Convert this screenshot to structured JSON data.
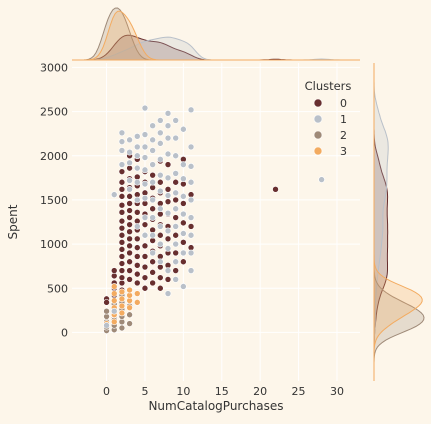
{
  "chart_data": {
    "type": "scatter",
    "title": "",
    "xlabel": "NumCatalogPurchases",
    "ylabel": "Spent",
    "xlim": [
      -4.5,
      33
    ],
    "ylim": [
      -550,
      3050
    ],
    "xticks": [
      0,
      5,
      10,
      15,
      20,
      25,
      30
    ],
    "yticks": [
      0,
      500,
      1000,
      1500,
      2000,
      2500,
      3000
    ],
    "grid": true,
    "legend": {
      "title": "Clusters",
      "placement": "top-right"
    },
    "marginals": {
      "top": "kde",
      "right": "kde"
    },
    "series": [
      {
        "name": "0",
        "color": "#682f2f",
        "points": [
          [
            0,
            380
          ],
          [
            0,
            340
          ],
          [
            1,
            100
          ],
          [
            1,
            180
          ],
          [
            1,
            260
          ],
          [
            1,
            350
          ],
          [
            1,
            420
          ],
          [
            1,
            500
          ],
          [
            1,
            560
          ],
          [
            1,
            640
          ],
          [
            1,
            700
          ],
          [
            2,
            480
          ],
          [
            2,
            560
          ],
          [
            2,
            620
          ],
          [
            2,
            700
          ],
          [
            2,
            780
          ],
          [
            2,
            860
          ],
          [
            2,
            940
          ],
          [
            2,
            1020
          ],
          [
            2,
            1100
          ],
          [
            2,
            1180
          ],
          [
            2,
            1260
          ],
          [
            2,
            1360
          ],
          [
            2,
            1440
          ],
          [
            2,
            1540
          ],
          [
            2,
            1620
          ],
          [
            2,
            1700
          ],
          [
            2,
            1820
          ],
          [
            3,
            600
          ],
          [
            3,
            700
          ],
          [
            3,
            800
          ],
          [
            3,
            900
          ],
          [
            3,
            980
          ],
          [
            3,
            1060
          ],
          [
            3,
            1140
          ],
          [
            3,
            1220
          ],
          [
            3,
            1300
          ],
          [
            3,
            1380
          ],
          [
            3,
            1460
          ],
          [
            3,
            1540
          ],
          [
            3,
            1640
          ],
          [
            3,
            1740
          ],
          [
            3,
            1860
          ],
          [
            3,
            2000
          ],
          [
            4,
            560
          ],
          [
            4,
            660
          ],
          [
            4,
            760
          ],
          [
            4,
            860
          ],
          [
            4,
            960
          ],
          [
            4,
            1060
          ],
          [
            4,
            1160
          ],
          [
            4,
            1260
          ],
          [
            4,
            1360
          ],
          [
            4,
            1460
          ],
          [
            4,
            1560
          ],
          [
            4,
            1660
          ],
          [
            4,
            1760
          ],
          [
            4,
            1960
          ],
          [
            5,
            500
          ],
          [
            5,
            620
          ],
          [
            5,
            740
          ],
          [
            5,
            860
          ],
          [
            5,
            980
          ],
          [
            5,
            1100
          ],
          [
            5,
            1220
          ],
          [
            5,
            1340
          ],
          [
            5,
            1460
          ],
          [
            5,
            1580
          ],
          [
            5,
            1700
          ],
          [
            5,
            1820
          ],
          [
            6,
            560
          ],
          [
            6,
            680
          ],
          [
            6,
            800
          ],
          [
            6,
            920
          ],
          [
            6,
            1040
          ],
          [
            6,
            1160
          ],
          [
            6,
            1280
          ],
          [
            6,
            1400
          ],
          [
            6,
            1520
          ],
          [
            6,
            1640
          ],
          [
            6,
            1780
          ],
          [
            7,
            500
          ],
          [
            7,
            620
          ],
          [
            7,
            740
          ],
          [
            7,
            860
          ],
          [
            7,
            980
          ],
          [
            7,
            1100
          ],
          [
            7,
            1220
          ],
          [
            7,
            1340
          ],
          [
            7,
            1460
          ],
          [
            7,
            1580
          ],
          [
            7,
            1700
          ],
          [
            7,
            1940
          ],
          [
            8,
            600
          ],
          [
            8,
            760
          ],
          [
            8,
            900
          ],
          [
            8,
            1060
          ],
          [
            8,
            1200
          ],
          [
            8,
            1340
          ],
          [
            8,
            1480
          ],
          [
            8,
            1620
          ],
          [
            8,
            1900
          ],
          [
            9,
            700
          ],
          [
            9,
            900
          ],
          [
            9,
            1100
          ],
          [
            9,
            1300
          ],
          [
            9,
            1500
          ],
          [
            9,
            1700
          ],
          [
            10,
            800
          ],
          [
            10,
            1020
          ],
          [
            10,
            1240
          ],
          [
            10,
            1460
          ],
          [
            10,
            1680
          ],
          [
            10,
            1960
          ],
          [
            11,
            960
          ],
          [
            11,
            1200
          ],
          [
            11,
            1560
          ],
          [
            22,
            1620
          ]
        ]
      },
      {
        "name": "1",
        "color": "#b9c0c9",
        "points": [
          [
            0,
            80
          ],
          [
            1,
            240
          ],
          [
            1,
            1560
          ],
          [
            2,
            1900
          ],
          [
            2,
            2060
          ],
          [
            2,
            2160
          ],
          [
            2,
            2260
          ],
          [
            3,
            1620
          ],
          [
            3,
            1720
          ],
          [
            3,
            1920
          ],
          [
            3,
            2040
          ],
          [
            3,
            2180
          ],
          [
            4,
            1200
          ],
          [
            4,
            1500
          ],
          [
            4,
            1700
          ],
          [
            4,
            1860
          ],
          [
            4,
            2000
          ],
          [
            4,
            2100
          ],
          [
            4,
            2220
          ],
          [
            5,
            1100
          ],
          [
            5,
            1300
          ],
          [
            5,
            1520
          ],
          [
            5,
            1680
          ],
          [
            5,
            1840
          ],
          [
            5,
            1980
          ],
          [
            5,
            2100
          ],
          [
            5,
            2240
          ],
          [
            5,
            2540
          ],
          [
            6,
            900
          ],
          [
            6,
            1100
          ],
          [
            6,
            1300
          ],
          [
            6,
            1500
          ],
          [
            6,
            1700
          ],
          [
            6,
            1900
          ],
          [
            6,
            2060
          ],
          [
            6,
            2180
          ],
          [
            6,
            2340
          ],
          [
            7,
            800
          ],
          [
            7,
            1000
          ],
          [
            7,
            1200
          ],
          [
            7,
            1400
          ],
          [
            7,
            1600
          ],
          [
            7,
            1780
          ],
          [
            7,
            1960
          ],
          [
            7,
            2140
          ],
          [
            7,
            2260
          ],
          [
            7,
            2400
          ],
          [
            8,
            440
          ],
          [
            8,
            700
          ],
          [
            8,
            950
          ],
          [
            8,
            1150
          ],
          [
            8,
            1350
          ],
          [
            8,
            1550
          ],
          [
            8,
            1750
          ],
          [
            8,
            2020
          ],
          [
            8,
            2200
          ],
          [
            8,
            2340
          ],
          [
            8,
            2480
          ],
          [
            9,
            600
          ],
          [
            9,
            800
          ],
          [
            9,
            1000
          ],
          [
            9,
            1200
          ],
          [
            9,
            1400
          ],
          [
            9,
            1580
          ],
          [
            9,
            1800
          ],
          [
            9,
            2000
          ],
          [
            9,
            2200
          ],
          [
            9,
            2400
          ],
          [
            10,
            520
          ],
          [
            10,
            900
          ],
          [
            10,
            1120
          ],
          [
            10,
            1340
          ],
          [
            10,
            1540
          ],
          [
            10,
            1740
          ],
          [
            10,
            1900
          ],
          [
            10,
            2300
          ],
          [
            11,
            700
          ],
          [
            11,
            900
          ],
          [
            11,
            1100
          ],
          [
            11,
            1300
          ],
          [
            11,
            1500
          ],
          [
            11,
            1700
          ],
          [
            11,
            1880
          ],
          [
            11,
            2100
          ],
          [
            11,
            2520
          ],
          [
            28,
            1730
          ]
        ]
      },
      {
        "name": "2",
        "color": "#9f8a78",
        "points": [
          [
            0,
            20
          ],
          [
            0,
            60
          ],
          [
            0,
            120
          ],
          [
            0,
            180
          ],
          [
            0,
            240
          ],
          [
            1,
            30
          ],
          [
            1,
            80
          ],
          [
            1,
            140
          ],
          [
            1,
            200
          ],
          [
            1,
            260
          ],
          [
            1,
            320
          ],
          [
            2,
            50
          ],
          [
            2,
            120
          ],
          [
            2,
            180
          ],
          [
            2,
            260
          ],
          [
            2,
            340
          ],
          [
            2,
            420
          ],
          [
            3,
            100
          ],
          [
            3,
            200
          ],
          [
            3,
            300
          ]
        ]
      },
      {
        "name": "3",
        "color": "#f3ab60",
        "points": [
          [
            0,
            100
          ],
          [
            1,
            120
          ],
          [
            1,
            200
          ],
          [
            1,
            280
          ],
          [
            1,
            360
          ],
          [
            1,
            440
          ],
          [
            1,
            520
          ],
          [
            2,
            220
          ],
          [
            2,
            300
          ],
          [
            2,
            380
          ],
          [
            2,
            460
          ],
          [
            3,
            280
          ],
          [
            3,
            360
          ],
          [
            3,
            420
          ],
          [
            3,
            480
          ],
          [
            4,
            340
          ],
          [
            4,
            440
          ]
        ]
      }
    ]
  }
}
